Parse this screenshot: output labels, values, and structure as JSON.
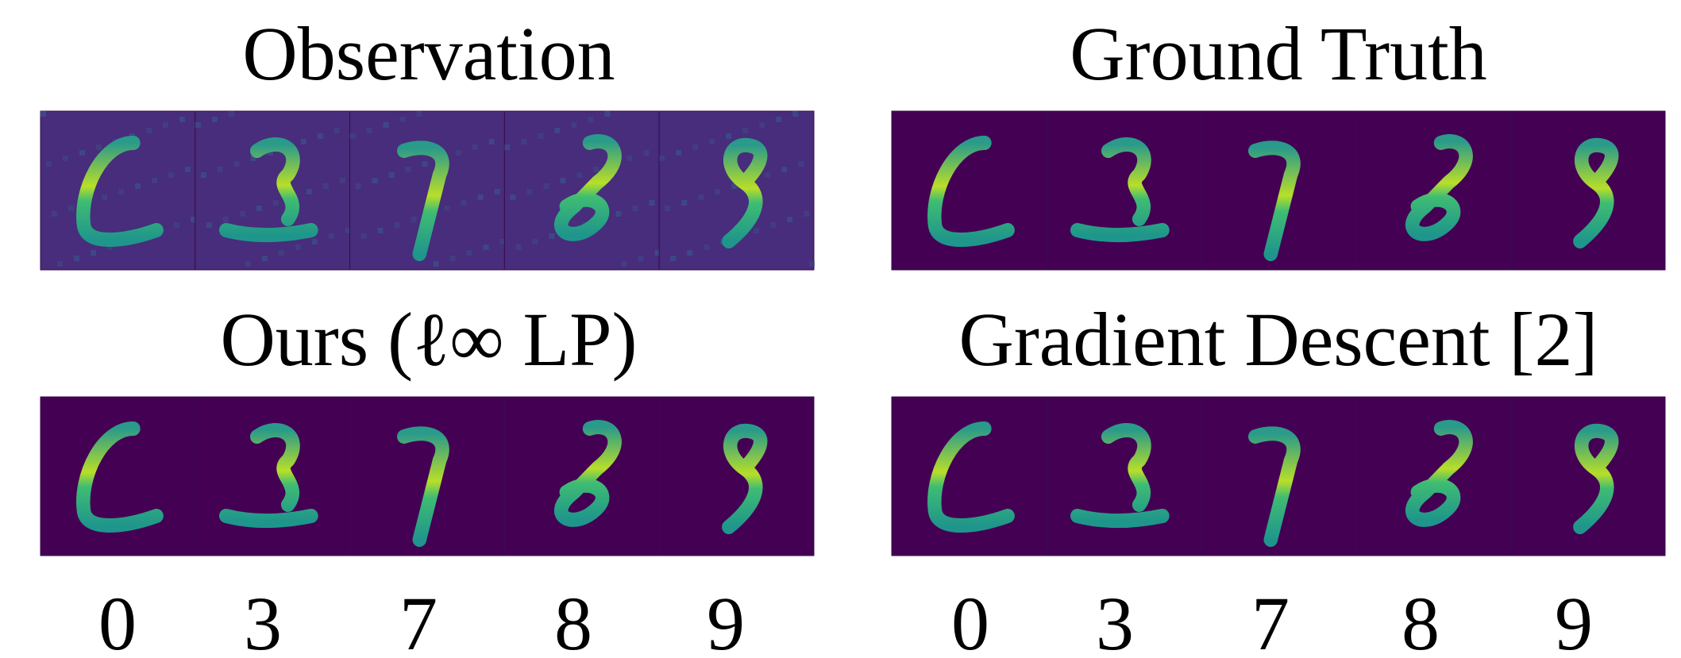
{
  "panels": [
    {
      "title": "Observation"
    },
    {
      "title": "Ground Truth"
    },
    {
      "title": "Ours (ℓ∞ LP)"
    },
    {
      "title": "Gradient Descent [2]"
    }
  ],
  "digit_labels": [
    [
      "0",
      "3",
      "7",
      "8",
      "9"
    ],
    [
      "0",
      "3",
      "7",
      "8",
      "9"
    ]
  ]
}
